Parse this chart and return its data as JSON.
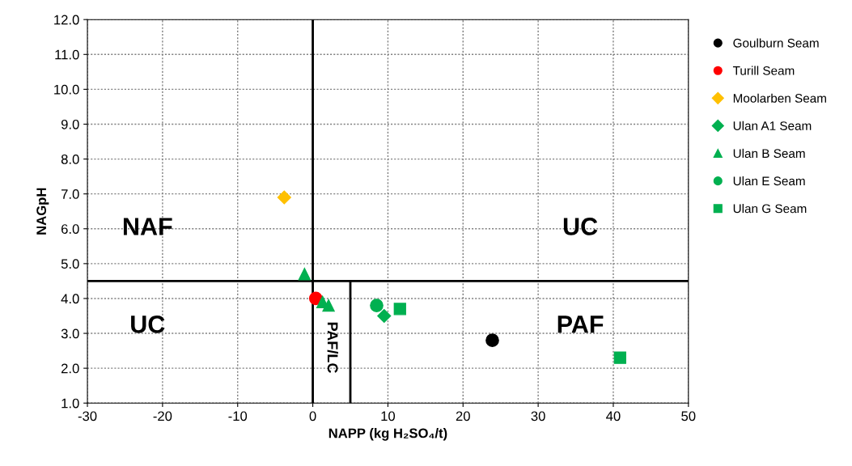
{
  "chart_data": {
    "type": "scatter",
    "xlabel": "NAPP (kg H₂SO₄/t)",
    "ylabel": "NAGpH",
    "xlim": [
      -30,
      50
    ],
    "xticks": [
      -30,
      -20,
      -10,
      0,
      10,
      20,
      30,
      40,
      50
    ],
    "ylim": [
      1,
      12
    ],
    "yticks": [
      {
        "value": 1,
        "label": "1.0"
      },
      {
        "value": 2,
        "label": "2.0"
      },
      {
        "value": 3,
        "label": "3.0"
      },
      {
        "value": 4,
        "label": "4.0"
      },
      {
        "value": 5,
        "label": "5.0"
      },
      {
        "value": 6,
        "label": "6.0"
      },
      {
        "value": 7,
        "label": "7.0"
      },
      {
        "value": 8,
        "label": "8.0"
      },
      {
        "value": 9,
        "label": "9.0"
      },
      {
        "value": 10,
        "label": "10.0"
      },
      {
        "value": 11,
        "label": "11.0"
      },
      {
        "value": 12,
        "label": "12.0"
      }
    ],
    "grid": true,
    "legend": "right",
    "series": [
      {
        "name": "Goulburn Seam",
        "color": "#000000",
        "marker": "circle",
        "x": [
          23.9
        ],
        "values": [
          2.8
        ]
      },
      {
        "name": "Turill Seam",
        "color": "#ff0000",
        "marker": "circle",
        "x": [
          0.4
        ],
        "values": [
          4.0
        ]
      },
      {
        "name": "Moolarben Seam",
        "color": "#ffc000",
        "marker": "diamond",
        "x": [
          -3.8
        ],
        "values": [
          6.9
        ]
      },
      {
        "name": "Ulan A1 Seam",
        "color": "#00b050",
        "marker": "diamond",
        "x": [
          9.5
        ],
        "values": [
          3.5
        ]
      },
      {
        "name": "Ulan B Seam",
        "color": "#00b050",
        "marker": "triangle",
        "x": [
          -1.1,
          1.3,
          2.1
        ],
        "values": [
          4.7,
          3.9,
          3.8
        ]
      },
      {
        "name": "Ulan E Seam",
        "color": "#00b050",
        "marker": "circle",
        "x": [
          8.5
        ],
        "values": [
          3.8
        ]
      },
      {
        "name": "Ulan G Seam",
        "color": "#00b050",
        "marker": "square",
        "x": [
          11.6,
          40.9
        ],
        "values": [
          3.7,
          2.3
        ]
      },
      {
        "type": "line",
        "color": "#000000",
        "marker": "none",
        "x": [
          5,
          5
        ],
        "values": [
          1,
          4.5
        ]
      }
    ],
    "ref_lines": [
      {
        "axis": "x",
        "value": 0,
        "color": "#000000"
      },
      {
        "axis": "y",
        "value": 4.5,
        "color": "#000000"
      }
    ],
    "annotations": [
      "NAF",
      "UC",
      "UC",
      "PAF",
      "PAF/LC"
    ]
  }
}
